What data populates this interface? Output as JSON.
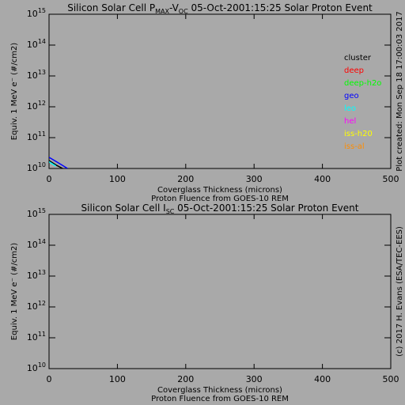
{
  "chart_data": [
    {
      "type": "line",
      "title_segments": [
        {
          "text": "Silicon Solar Cell P",
          "sub": false
        },
        {
          "text": "MAX",
          "sub": true
        },
        {
          "text": "-V",
          "sub": false
        },
        {
          "text": "OC",
          "sub": true
        },
        {
          "text": " 05-Oct-2001:15:25 Solar Proton Event",
          "sub": false
        }
      ],
      "xlabel": [
        "Coverglass Thickness (microns)",
        "Proton Fluence from GOES-10 REM"
      ],
      "ylabel": "Equiv. 1 MeV e⁻ (#/cm2)",
      "annotation": "Plot created: Mon Sep 18 17:00:03 2017",
      "log_y": true,
      "xlim": [
        0,
        500
      ],
      "xticks": [
        0,
        100,
        200,
        300,
        400,
        500
      ],
      "ylim": [
        10000000000.0,
        1000000000000000.0
      ],
      "yticks": [
        {
          "value": 10000000000.0,
          "label": "10",
          "exponent": "10"
        },
        {
          "value": 100000000000.0,
          "label": "10",
          "exponent": "11"
        },
        {
          "value": 1000000000000.0,
          "label": "10",
          "exponent": "12"
        },
        {
          "value": 10000000000000.0,
          "label": "10",
          "exponent": "13"
        },
        {
          "value": 100000000000000.0,
          "label": "10",
          "exponent": "14"
        },
        {
          "value": 1000000000000000.0,
          "label": "10",
          "exponent": "15"
        }
      ],
      "x": [
        0,
        10,
        20,
        27
      ],
      "series": [
        {
          "name": "cluster",
          "color": "#000000",
          "values": [
            18000000000.0,
            13000000000.0,
            10000000000.0,
            null
          ]
        },
        {
          "name": "deep",
          "color": "#ff0000",
          "values": [
            null,
            null,
            null,
            null
          ]
        },
        {
          "name": "deep-h2o",
          "color": "#00ff00",
          "values": [
            null,
            null,
            null,
            null
          ]
        },
        {
          "name": "geo",
          "color": "#0000ff",
          "values": [
            23000000000.0,
            17000000000.0,
            12500000000.0,
            10000000000.0
          ]
        },
        {
          "name": "leo",
          "color": "#00ffff",
          "values": [
            16500000000.0,
            12000000000.0,
            null,
            null
          ]
        },
        {
          "name": "hel",
          "color": "#ff00ff",
          "values": [
            null,
            null,
            null,
            null
          ]
        },
        {
          "name": "iss-h20",
          "color": "#ffff00",
          "values": [
            null,
            null,
            null,
            null
          ]
        },
        {
          "name": "iss-al",
          "color": "#ff8c00",
          "values": [
            null,
            null,
            null,
            null
          ]
        }
      ]
    },
    {
      "type": "line",
      "title_segments": [
        {
          "text": "Silicon Solar Cell I",
          "sub": false
        },
        {
          "text": "SC",
          "sub": true
        },
        {
          "text": " 05-Oct-2001:15:25 Solar Proton Event",
          "sub": false
        }
      ],
      "xlabel": [
        "Coverglass Thickness (microns)",
        "Proton Fluence from GOES-10 REM"
      ],
      "ylabel": "Equiv. 1 MeV e⁻ (#/cm2)",
      "annotation": "(c) 2017 H. Evans (ESA/TEC-EES)",
      "log_y": true,
      "xlim": [
        0,
        500
      ],
      "xticks": [
        0,
        100,
        200,
        300,
        400,
        500
      ],
      "ylim": [
        10000000000.0,
        1000000000000000.0
      ],
      "yticks": [
        {
          "value": 10000000000.0,
          "label": "10",
          "exponent": "10"
        },
        {
          "value": 100000000000.0,
          "label": "10",
          "exponent": "11"
        },
        {
          "value": 1000000000000.0,
          "label": "10",
          "exponent": "12"
        },
        {
          "value": 10000000000000.0,
          "label": "10",
          "exponent": "13"
        },
        {
          "value": 100000000000000.0,
          "label": "10",
          "exponent": "14"
        },
        {
          "value": 1000000000000000.0,
          "label": "10",
          "exponent": "15"
        }
      ]
    }
  ]
}
